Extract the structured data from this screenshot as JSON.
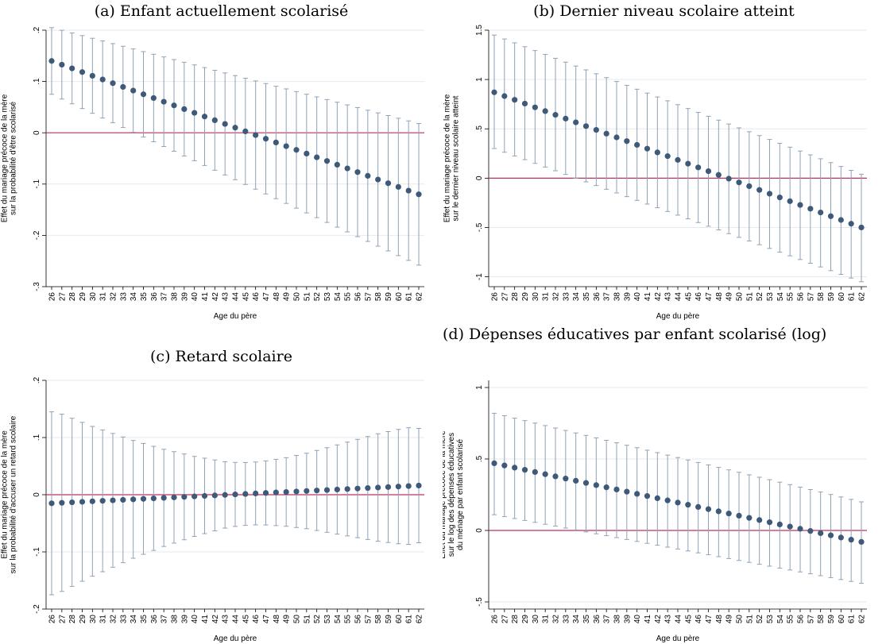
{
  "chart_data": [
    {
      "type": "scatter",
      "panel_label": "(a) Enfant actuellement scolarisé",
      "xlabel": "Age du père",
      "ylabel": [
        "Effet du mariage précoce de la mère",
        "sur la probabilité d'être scolarisé"
      ],
      "x": [
        26,
        27,
        28,
        29,
        30,
        31,
        32,
        33,
        34,
        35,
        36,
        37,
        38,
        39,
        40,
        41,
        42,
        43,
        44,
        45,
        46,
        47,
        48,
        49,
        50,
        51,
        52,
        53,
        54,
        55,
        56,
        57,
        58,
        59,
        60,
        61,
        62
      ],
      "y_start": 0.14,
      "y_end": -0.12,
      "ci_upper_start": 0.205,
      "ci_upper_end": 0.018,
      "ci_lower_start": 0.075,
      "ci_lower_end": -0.258,
      "ylim": [
        -0.3,
        0.2
      ],
      "yticks": [
        0.2,
        0.1,
        0,
        -0.1,
        -0.2,
        -0.3
      ],
      "ytick_labels": [
        ".2",
        ".1",
        "0",
        "-.1",
        "-.2",
        "-.3"
      ],
      "reference_line": 0,
      "grid": true
    },
    {
      "type": "scatter",
      "panel_label": "(b) Dernier niveau scolaire atteint",
      "xlabel": "Age du père",
      "ylabel": [
        "Effet du mariage précoce de la mère",
        "sur le dernier niveau scolaire atteint"
      ],
      "x": [
        26,
        27,
        28,
        29,
        30,
        31,
        32,
        33,
        34,
        35,
        36,
        37,
        38,
        39,
        40,
        41,
        42,
        43,
        44,
        45,
        46,
        47,
        48,
        49,
        50,
        51,
        52,
        53,
        54,
        55,
        56,
        57,
        58,
        59,
        60,
        61,
        62
      ],
      "y_start": 0.87,
      "y_end": -0.5,
      "ci_upper_start": 1.45,
      "ci_upper_end": 0.04,
      "ci_lower_start": 0.3,
      "ci_lower_end": -1.05,
      "ylim": [
        -1.1,
        1.5
      ],
      "yticks": [
        1.5,
        1,
        0.5,
        0,
        -0.5,
        -1
      ],
      "ytick_labels": [
        "1.5",
        "1",
        ".5",
        "0",
        "-.5",
        "-1"
      ],
      "reference_line": 0,
      "grid": true
    },
    {
      "type": "scatter",
      "panel_label": "(c) Retard scolaire",
      "xlabel": "Age du père",
      "ylabel": [
        "Effet du mariage précoce de la mère",
        "sur la probabilité d'accuser un retard scolaire"
      ],
      "x": [
        26,
        27,
        28,
        29,
        30,
        31,
        32,
        33,
        34,
        35,
        36,
        37,
        38,
        39,
        40,
        41,
        42,
        43,
        44,
        45,
        46,
        47,
        48,
        49,
        50,
        51,
        52,
        53,
        54,
        55,
        56,
        57,
        58,
        59,
        60,
        61,
        62
      ],
      "y_start": -0.015,
      "y_end": 0.016,
      "ci_half_width": [
        0.16,
        0.155,
        0.147,
        0.139,
        0.131,
        0.124,
        0.117,
        0.11,
        0.103,
        0.097,
        0.091,
        0.085,
        0.08,
        0.075,
        0.07,
        0.066,
        0.062,
        0.058,
        0.056,
        0.055,
        0.055,
        0.056,
        0.058,
        0.06,
        0.063,
        0.066,
        0.07,
        0.074,
        0.078,
        0.082,
        0.086,
        0.09,
        0.094,
        0.097,
        0.1,
        0.102,
        0.1
      ],
      "ylim": [
        -0.2,
        0.2
      ],
      "yticks": [
        0.2,
        0.1,
        0,
        -0.1,
        -0.2
      ],
      "ytick_labels": [
        ".2",
        ".1",
        "0",
        "-.1",
        "-.2"
      ],
      "reference_line": 0,
      "grid": true
    },
    {
      "type": "scatter",
      "panel_label": "(d) Dépenses éducatives par enfant scolarisé (log)",
      "xlabel": "Age du père",
      "ylabel": [
        "Effet du mariage précoce de la mère",
        "sur le log des dépenses éducatives",
        "du ménage par enfant scolarisé"
      ],
      "x": [
        26,
        27,
        28,
        29,
        30,
        31,
        32,
        33,
        34,
        35,
        36,
        37,
        38,
        39,
        40,
        41,
        42,
        43,
        44,
        45,
        46,
        47,
        48,
        49,
        50,
        51,
        52,
        53,
        54,
        55,
        56,
        57,
        58,
        59,
        60,
        61,
        62
      ],
      "y_start": 0.47,
      "y_end": -0.08,
      "ci_upper_start": 0.82,
      "ci_upper_end": 0.2,
      "ci_lower_start": 0.11,
      "ci_lower_end": -0.37,
      "ylim": [
        -0.55,
        1.05
      ],
      "yticks": [
        1,
        0.5,
        0,
        -0.5
      ],
      "ytick_labels": [
        "1",
        ".5",
        "0",
        "-.5"
      ],
      "reference_line": 0,
      "grid": true
    }
  ],
  "colors": {
    "marker": "#3e5a78",
    "ci": "#8fa2b6",
    "reference_line": "#c03060",
    "grid": "#e6eaee",
    "axis": "#000000"
  }
}
